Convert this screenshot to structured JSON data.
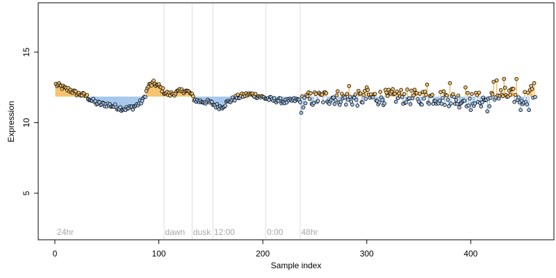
{
  "chart_data": {
    "type": "scatter",
    "title": "",
    "xlabel": "Sample index",
    "ylabel": "Expression",
    "xlim": [
      -16,
      480
    ],
    "ylim": [
      1.7,
      18.5
    ],
    "x_ticks": [
      0,
      100,
      200,
      300,
      400
    ],
    "y_ticks": [
      5,
      10,
      15
    ],
    "grid": false,
    "legend": "none",
    "baseline": 11.85,
    "colors": {
      "above": "#f5c16b",
      "below": "#a6c8ee",
      "point_stroke": "#000000",
      "separator": "#dcdcdc",
      "section_text": "#a8a8a8"
    },
    "sections": [
      {
        "label": "24hr",
        "start": 2,
        "boundary": null
      },
      {
        "label": "dawn",
        "start": 106,
        "boundary": 105
      },
      {
        "label": "dusk",
        "start": 133,
        "boundary": 132
      },
      {
        "label": "12:00",
        "start": 153,
        "boundary": 152
      },
      {
        "label": "0:00",
        "start": 204,
        "boundary": 203
      },
      {
        "label": "48hr",
        "start": 237,
        "boundary": 236
      }
    ],
    "anchors": [
      [
        1,
        12.7
      ],
      [
        5,
        12.6
      ],
      [
        10,
        12.4
      ],
      [
        15,
        12.3
      ],
      [
        20,
        12.1
      ],
      [
        25,
        12.0
      ],
      [
        30,
        11.9
      ],
      [
        35,
        11.6
      ],
      [
        40,
        11.4
      ],
      [
        45,
        11.3
      ],
      [
        50,
        11.3
      ],
      [
        55,
        11.2
      ],
      [
        60,
        11.1
      ],
      [
        65,
        11.0
      ],
      [
        70,
        11.0
      ],
      [
        75,
        11.1
      ],
      [
        80,
        11.3
      ],
      [
        85,
        11.6
      ],
      [
        90,
        12.6
      ],
      [
        95,
        12.8
      ],
      [
        100,
        12.6
      ],
      [
        105,
        12.2
      ],
      [
        110,
        12.0
      ],
      [
        115,
        12.1
      ],
      [
        120,
        12.2
      ],
      [
        125,
        12.3
      ],
      [
        130,
        12.1
      ],
      [
        135,
        11.6
      ],
      [
        140,
        11.5
      ],
      [
        145,
        11.5
      ],
      [
        150,
        11.4
      ],
      [
        155,
        11.2
      ],
      [
        160,
        11.1
      ],
      [
        165,
        11.4
      ],
      [
        170,
        11.6
      ],
      [
        175,
        11.8
      ],
      [
        180,
        11.9
      ],
      [
        185,
        12.0
      ],
      [
        190,
        12.0
      ],
      [
        195,
        11.9
      ],
      [
        200,
        11.8
      ],
      [
        205,
        11.7
      ],
      [
        210,
        11.6
      ],
      [
        215,
        11.6
      ],
      [
        220,
        11.5
      ],
      [
        225,
        11.5
      ],
      [
        230,
        11.6
      ],
      [
        235,
        11.6
      ],
      [
        240,
        11.6
      ],
      [
        250,
        11.7
      ],
      [
        260,
        11.8
      ],
      [
        270,
        11.8
      ],
      [
        280,
        11.7
      ],
      [
        290,
        11.7
      ],
      [
        300,
        11.8
      ],
      [
        310,
        11.8
      ],
      [
        320,
        11.8
      ],
      [
        330,
        11.9
      ],
      [
        340,
        11.8
      ],
      [
        350,
        11.8
      ],
      [
        360,
        11.8
      ],
      [
        370,
        11.8
      ],
      [
        380,
        11.7
      ],
      [
        390,
        11.6
      ],
      [
        400,
        11.7
      ],
      [
        410,
        11.6
      ],
      [
        420,
        11.7
      ],
      [
        430,
        12.0
      ],
      [
        440,
        11.9
      ],
      [
        450,
        11.8
      ],
      [
        460,
        11.9
      ]
    ],
    "highlights": [
      [
        237,
        10.7
      ],
      [
        283,
        12.6
      ],
      [
        300,
        12.5
      ],
      [
        358,
        12.7
      ],
      [
        380,
        12.8
      ],
      [
        395,
        12.5
      ],
      [
        400,
        10.9
      ],
      [
        416,
        10.8
      ],
      [
        422,
        12.9
      ],
      [
        425,
        13.0
      ],
      [
        432,
        13.1
      ],
      [
        444,
        13.1
      ],
      [
        448,
        10.9
      ],
      [
        456,
        10.9
      ],
      [
        458,
        12.6
      ],
      [
        461,
        12.8
      ]
    ]
  }
}
